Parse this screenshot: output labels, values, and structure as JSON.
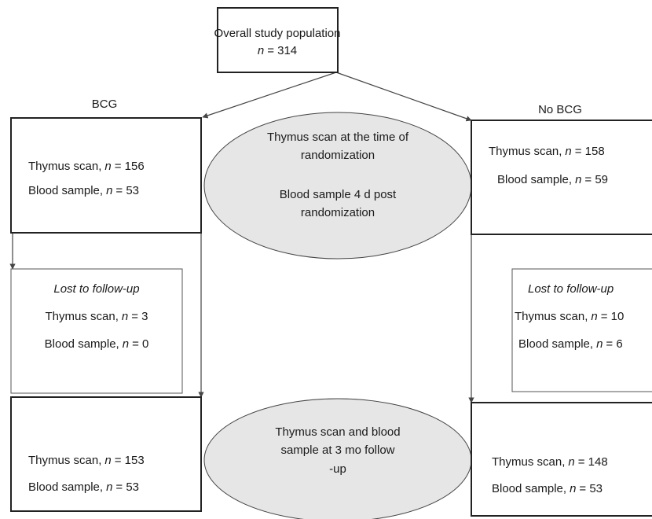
{
  "header": {
    "title": {
      "text": "Overall study population",
      "symbol": "n",
      "rest": "= 314"
    }
  },
  "groups": [
    {
      "label": "BCG",
      "baseline": [
        {
          "text": "Thymus scan,",
          "symbol": "n",
          "rest": "= 156"
        },
        {
          "text": "Blood sample,",
          "symbol": "n",
          "rest": "= 53"
        }
      ],
      "lost": {
        "title": "Lost to follow-up",
        "lines": [
          {
            "text": "Thymus scan,",
            "symbol": "n",
            "rest": "= 3"
          },
          {
            "text": "Blood sample,",
            "symbol": "n",
            "rest": "= 0"
          }
        ]
      },
      "followup": [
        {
          "text": "Thymus scan,",
          "symbol": "n",
          "rest": "= 153"
        },
        {
          "text": "Blood sample,",
          "symbol": "n",
          "rest": "= 53"
        }
      ]
    },
    {
      "label": "No BCG",
      "baseline": [
        {
          "text": "Thymus scan,",
          "symbol": "n",
          "rest": "= 158"
        },
        {
          "text": "Blood sample,",
          "symbol": "n",
          "rest": "= 59"
        }
      ],
      "lost": {
        "title": "Lost to follow-up",
        "lines": [
          {
            "text": "Thymus scan,",
            "symbol": "n",
            "rest": "= 10"
          },
          {
            "text": "Blood sample,",
            "symbol": "n",
            "rest": "= 6"
          }
        ]
      },
      "followup": [
        {
          "text": "Thymus scan,",
          "symbol": "n",
          "rest": "= 148"
        },
        {
          "text": "Blood sample,",
          "symbol": "n",
          "rest": "= 53"
        }
      ]
    }
  ],
  "timepoints": [
    {
      "lines": [
        "Thymus scan at the time of",
        "randomization",
        "Blood sample 4 d post",
        "randomization"
      ]
    },
    {
      "lines": [
        "Thymus scan and blood",
        "sample at 3 mo follow",
        "-up"
      ]
    }
  ]
}
